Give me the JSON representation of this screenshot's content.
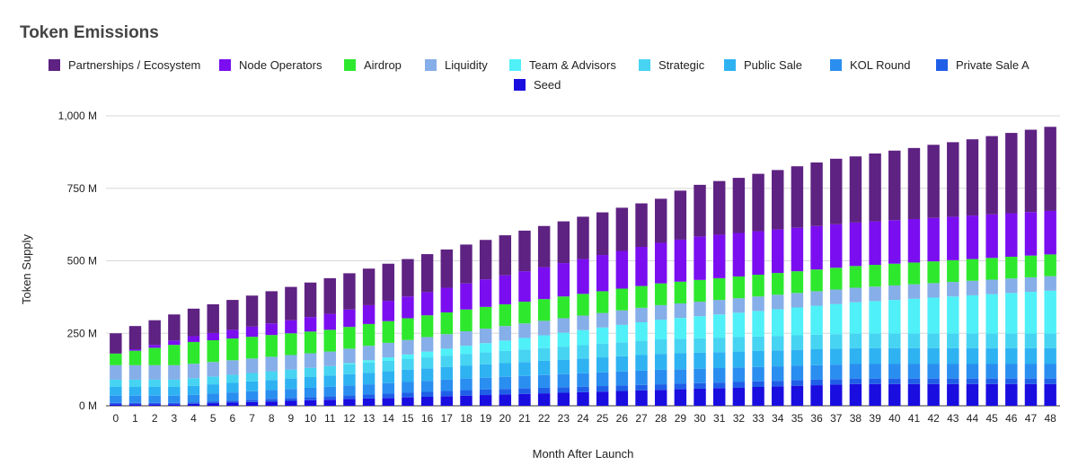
{
  "chart_data": {
    "type": "bar",
    "stacked": true,
    "title": "Token Emissions",
    "xlabel": "Month After Launch",
    "ylabel": "Token Supply",
    "ylim": [
      0,
      1000
    ],
    "unit": "M",
    "y_ticks": [
      {
        "value": 0,
        "label": "0 M"
      },
      {
        "value": 250,
        "label": "250 M"
      },
      {
        "value": 500,
        "label": "500 M"
      },
      {
        "value": 750,
        "label": "750 M"
      },
      {
        "value": 1000,
        "label": "1,000 M"
      }
    ],
    "grid": true,
    "legend_position": "top",
    "categories": [
      "0",
      "1",
      "2",
      "3",
      "4",
      "5",
      "6",
      "7",
      "8",
      "9",
      "10",
      "11",
      "12",
      "13",
      "14",
      "15",
      "16",
      "17",
      "18",
      "19",
      "20",
      "21",
      "22",
      "23",
      "24",
      "25",
      "26",
      "27",
      "28",
      "29",
      "30",
      "31",
      "32",
      "33",
      "34",
      "35",
      "36",
      "37",
      "38",
      "39",
      "40",
      "41",
      "42",
      "43",
      "44",
      "45",
      "46",
      "47",
      "48"
    ],
    "series": [
      {
        "name": "Seed",
        "color": "#1a0de0",
        "values": [
          5,
          5,
          5,
          5,
          7,
          9,
          11,
          13,
          15,
          17,
          19,
          21,
          23,
          25,
          27,
          29,
          31,
          33,
          35,
          37,
          39,
          41,
          43,
          45,
          47,
          49,
          51,
          53,
          55,
          57,
          59,
          61,
          63,
          65,
          67,
          69,
          71,
          73,
          75,
          75,
          75,
          75,
          75,
          75,
          75,
          75,
          75,
          75,
          75
        ]
      },
      {
        "name": "Private Sale A",
        "color": "#1f5fe8",
        "values": [
          5,
          5,
          5,
          5,
          5,
          6,
          7,
          8,
          9,
          10,
          11,
          12,
          13,
          14,
          15,
          16,
          17,
          18,
          19,
          19,
          19,
          19,
          19,
          19,
          19,
          19,
          19,
          19,
          19,
          19,
          19,
          19,
          19,
          19,
          19,
          19,
          19,
          19,
          19,
          19,
          19,
          19,
          19,
          19,
          19,
          19,
          19,
          19,
          19
        ]
      },
      {
        "name": "KOL Round",
        "color": "#2a8ef0",
        "values": [
          25,
          25,
          25,
          25,
          26,
          27,
          28,
          29,
          30,
          31,
          32,
          33,
          34,
          35,
          36,
          37,
          38,
          39,
          40,
          41,
          42,
          43,
          44,
          45,
          46,
          47,
          48,
          49,
          50,
          50,
          50,
          50,
          50,
          50,
          50,
          50,
          50,
          50,
          50,
          50,
          50,
          50,
          50,
          50,
          50,
          50,
          50,
          50,
          50
        ]
      },
      {
        "name": "Public Sale",
        "color": "#2eb2f2",
        "values": [
          30,
          30,
          30,
          30,
          31,
          32,
          33,
          34,
          35,
          36,
          37,
          38,
          39,
          40,
          41,
          42,
          43,
          44,
          45,
          46,
          47,
          48,
          49,
          50,
          51,
          52,
          53,
          54,
          55,
          55,
          55,
          55,
          55,
          55,
          55,
          55,
          55,
          55,
          55,
          55,
          55,
          55,
          55,
          55,
          55,
          55,
          55,
          55,
          55
        ]
      },
      {
        "name": "Strategic",
        "color": "#46d4f2",
        "values": [
          25,
          25,
          25,
          25,
          26,
          27,
          28,
          29,
          30,
          31,
          32,
          33,
          34,
          35,
          36,
          37,
          38,
          39,
          40,
          41,
          42,
          43,
          44,
          45,
          46,
          47,
          48,
          49,
          50,
          50,
          50,
          50,
          50,
          50,
          50,
          50,
          50,
          50,
          50,
          50,
          50,
          50,
          50,
          50,
          50,
          50,
          50,
          50,
          50
        ]
      },
      {
        "name": "Team & Advisors",
        "color": "#4ff0f8",
        "values": [
          0,
          0,
          0,
          0,
          0,
          0,
          0,
          0,
          0,
          0,
          0,
          0,
          4,
          8,
          12,
          16,
          20,
          24,
          28,
          32,
          36,
          40,
          44,
          48,
          52,
          56,
          60,
          64,
          68,
          72,
          76,
          80,
          84,
          88,
          92,
          96,
          100,
          104,
          108,
          112,
          116,
          120,
          124,
          128,
          132,
          136,
          140,
          144,
          148
        ]
      },
      {
        "name": "Liquidity",
        "color": "#86aee8",
        "values": [
          50,
          50,
          50,
          50,
          50,
          50,
          50,
          50,
          50,
          50,
          50,
          50,
          50,
          50,
          50,
          50,
          50,
          50,
          50,
          50,
          50,
          50,
          50,
          50,
          50,
          50,
          50,
          50,
          50,
          50,
          50,
          50,
          50,
          50,
          50,
          50,
          50,
          50,
          50,
          50,
          50,
          50,
          50,
          50,
          50,
          50,
          50,
          50,
          50
        ]
      },
      {
        "name": "Airdrop",
        "color": "#2ee82e",
        "values": [
          40,
          50,
          60,
          70,
          75,
          75,
          75,
          75,
          75,
          75,
          75,
          75,
          75,
          75,
          75,
          75,
          75,
          75,
          75,
          75,
          75,
          75,
          75,
          75,
          75,
          75,
          75,
          75,
          75,
          75,
          75,
          75,
          75,
          75,
          75,
          75,
          75,
          75,
          75,
          75,
          75,
          75,
          75,
          75,
          75,
          75,
          75,
          75,
          75
        ]
      },
      {
        "name": "Node Operators",
        "color": "#7a0ef0",
        "values": [
          0,
          5,
          10,
          15,
          20,
          25,
          30,
          35,
          40,
          45,
          50,
          55,
          60,
          65,
          70,
          75,
          80,
          85,
          90,
          95,
          100,
          105,
          110,
          115,
          120,
          125,
          130,
          135,
          140,
          145,
          150,
          150,
          150,
          150,
          150,
          150,
          150,
          150,
          150,
          150,
          150,
          150,
          150,
          150,
          150,
          150,
          150,
          150,
          150
        ]
      },
      {
        "name": "Partnerships / Ecosystem",
        "color": "#5e2282",
        "values": [
          70,
          80,
          85,
          90,
          95,
          99,
          103,
          107,
          111,
          115,
          119,
          123,
          125,
          126,
          128,
          129,
          131,
          132,
          134,
          136,
          138,
          140,
          142,
          144,
          146,
          147,
          149,
          150,
          152,
          169,
          178,
          185,
          190,
          198,
          205,
          212,
          219,
          226,
          228,
          234,
          240,
          245,
          252,
          257,
          263,
          270,
          277,
          284,
          290
        ]
      }
    ]
  }
}
